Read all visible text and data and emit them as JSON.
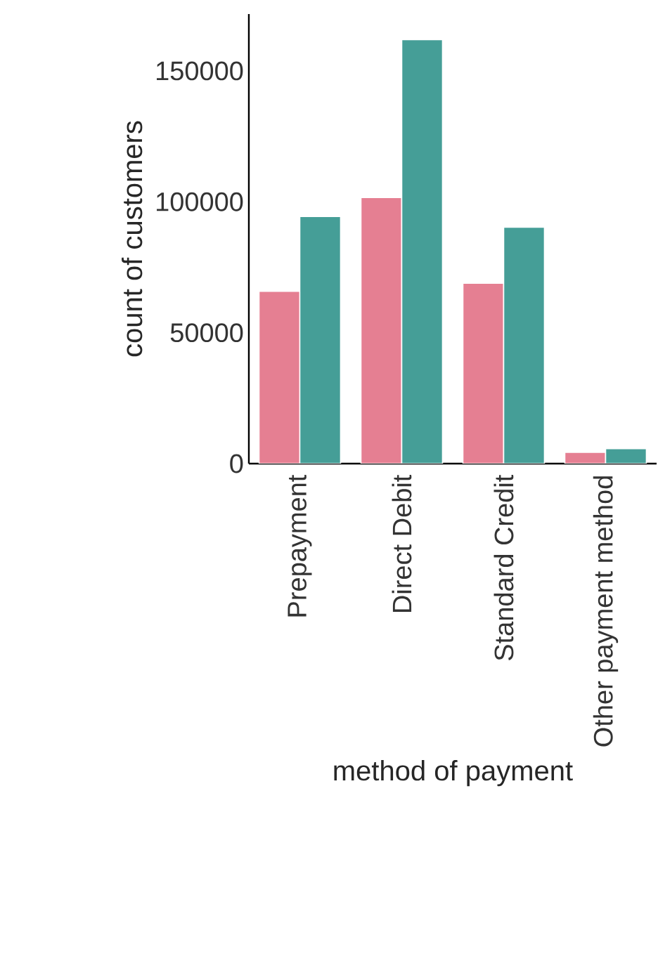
{
  "chart_data": {
    "type": "bar",
    "xlabel": "method of payment",
    "ylabel": "count of customers",
    "categories": [
      "Prepayment",
      "Direct Debit",
      "Standard Credit",
      "Other payment method"
    ],
    "series": [
      {
        "color": "#e57f92",
        "values": [
          65800,
          101600,
          68900,
          4300
        ]
      },
      {
        "color": "#459e97",
        "values": [
          94400,
          161900,
          90300,
          5700
        ]
      }
    ],
    "ylim": [
      0,
      171700
    ],
    "yticks": [
      0,
      50000,
      100000,
      150000
    ]
  }
}
